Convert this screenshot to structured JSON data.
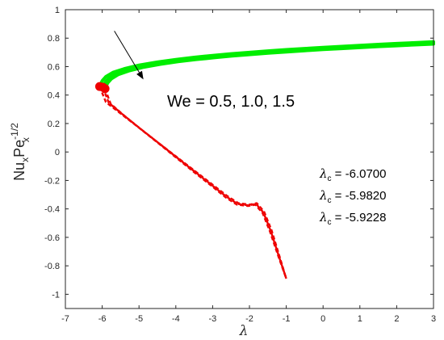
{
  "chart_data": {
    "type": "line",
    "title": "",
    "xlabel": "λ",
    "ylabel": {
      "base1": "Nu",
      "sub1": "x",
      "base2": "Pe",
      "sup2": "-1/2",
      "sub2": "x"
    },
    "xlim": [
      -7,
      3
    ],
    "ylim": [
      -1.1,
      1
    ],
    "x_ticks": [
      -7,
      -6,
      -5,
      -4,
      -3,
      -2,
      -1,
      0,
      1,
      2,
      3
    ],
    "y_ticks": [
      1,
      0.8,
      0.6,
      0.4,
      0.2,
      0,
      -0.2,
      -0.4,
      -0.6,
      -0.8,
      -1
    ],
    "x_tick_labels": [
      "-7",
      "-6",
      "-5",
      "-4",
      "-3",
      "-2",
      "-1",
      "0",
      "1",
      "2",
      "3"
    ],
    "y_tick_labels": [
      "1",
      "0.8",
      "0.6",
      "0.4",
      "0.2",
      "0",
      "-0.2",
      "-0.4",
      "-0.6",
      "-0.8",
      "-1"
    ],
    "grid": false,
    "colors": {
      "upper": "#00ee00",
      "lower": "#ee0000",
      "critical": "#ee0000"
    },
    "series": [
      {
        "branch": "upper",
        "We": 0.5,
        "x": [
          -6.07,
          -6.0,
          -5.9,
          -5.7,
          -5.4,
          -5.0,
          -4.5,
          -4.0,
          -3.5,
          -3.0,
          -2.5,
          -2.0,
          -1.5,
          -1.0,
          -0.5,
          0,
          0.5,
          1.0,
          1.5,
          2.0,
          2.5,
          3.0
        ],
        "y": [
          0.46,
          0.5,
          0.53,
          0.56,
          0.585,
          0.61,
          0.632,
          0.65,
          0.665,
          0.678,
          0.69,
          0.7,
          0.71,
          0.719,
          0.727,
          0.735,
          0.742,
          0.749,
          0.756,
          0.762,
          0.768,
          0.774
        ]
      },
      {
        "branch": "upper",
        "We": 1.0,
        "x": [
          -5.982,
          -5.91,
          -5.81,
          -5.62,
          -5.33,
          -4.94,
          -4.45,
          -3.96,
          -3.47,
          -2.97,
          -2.48,
          -1.98,
          -1.49,
          -0.99,
          -0.5,
          0,
          0.5,
          1.0,
          1.5,
          2.0,
          2.5,
          3.0
        ],
        "y": [
          0.455,
          0.493,
          0.522,
          0.552,
          0.577,
          0.602,
          0.624,
          0.642,
          0.657,
          0.67,
          0.682,
          0.692,
          0.702,
          0.711,
          0.719,
          0.727,
          0.734,
          0.741,
          0.748,
          0.754,
          0.76,
          0.766
        ]
      },
      {
        "branch": "upper",
        "We": 1.5,
        "x": [
          -5.9228,
          -5.85,
          -5.75,
          -5.56,
          -5.28,
          -4.9,
          -4.42,
          -3.94,
          -3.45,
          -2.96,
          -2.47,
          -1.98,
          -1.49,
          -0.99,
          -0.5,
          0,
          0.5,
          1.0,
          1.5,
          2.0,
          2.5,
          3.0
        ],
        "y": [
          0.445,
          0.485,
          0.515,
          0.545,
          0.57,
          0.595,
          0.617,
          0.635,
          0.65,
          0.663,
          0.675,
          0.685,
          0.695,
          0.704,
          0.712,
          0.72,
          0.727,
          0.734,
          0.741,
          0.747,
          0.753,
          0.759
        ]
      },
      {
        "branch": "lower",
        "We": 0.5,
        "x": [
          -6.07,
          -5.9,
          -5.5,
          -5.0,
          -4.5,
          -4.0,
          -3.5,
          -3.0,
          -2.6,
          -2.3,
          -2.0,
          -1.8,
          -1.6,
          -1.4,
          -1.2,
          -1.0
        ],
        "y": [
          0.46,
          0.35,
          0.27,
          0.17,
          0.07,
          -0.03,
          -0.13,
          -0.23,
          -0.31,
          -0.36,
          -0.37,
          -0.36,
          -0.42,
          -0.55,
          -0.72,
          -0.89
        ]
      },
      {
        "branch": "lower",
        "We": 1.0,
        "x": [
          -5.982,
          -5.82,
          -5.45,
          -4.97,
          -4.48,
          -3.99,
          -3.5,
          -3.01,
          -2.62,
          -2.32,
          -2.02,
          -1.82,
          -1.62,
          -1.42,
          -1.21,
          -1.0
        ],
        "y": [
          0.455,
          0.345,
          0.265,
          0.165,
          0.065,
          -0.035,
          -0.135,
          -0.235,
          -0.315,
          -0.365,
          -0.375,
          -0.365,
          -0.425,
          -0.555,
          -0.725,
          -0.89
        ]
      },
      {
        "branch": "lower",
        "We": 1.5,
        "x": [
          -5.9228,
          -5.77,
          -5.42,
          -4.95,
          -4.47,
          -3.99,
          -3.51,
          -3.02,
          -2.64,
          -2.34,
          -2.04,
          -1.84,
          -1.64,
          -1.44,
          -1.22,
          -1.0
        ],
        "y": [
          0.445,
          0.338,
          0.26,
          0.16,
          0.06,
          -0.04,
          -0.14,
          -0.24,
          -0.32,
          -0.37,
          -0.38,
          -0.37,
          -0.43,
          -0.56,
          -0.73,
          -0.89
        ]
      }
    ],
    "critical_points": [
      {
        "x": -6.07,
        "y": 0.46
      },
      {
        "x": -5.982,
        "y": 0.455
      },
      {
        "x": -5.9228,
        "y": 0.445
      }
    ],
    "annotation": {
      "text": "We = 0.5, 1.0, 1.5",
      "arrow_from": {
        "x": -5.67,
        "y": 0.85
      },
      "arrow_to": {
        "x": -4.88,
        "y": 0.51
      }
    },
    "lambda_c": [
      {
        "symbol": "λ",
        "sub": "c",
        "text": " = -6.0700"
      },
      {
        "symbol": "λ",
        "sub": "c",
        "text": " = -5.9820"
      },
      {
        "symbol": "λ",
        "sub": "c",
        "text": " = -5.9228"
      }
    ]
  }
}
